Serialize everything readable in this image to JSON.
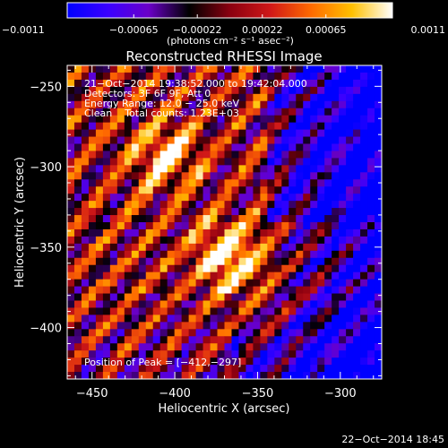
{
  "chart_data": {
    "type": "heatmap",
    "title": "Reconstructed RHESSI Image",
    "xlabel": "Heliocentric X (arcsec)",
    "ylabel": "Heliocentric Y (arcsec)",
    "xlim": [
      -465,
      -275
    ],
    "ylim": [
      -432,
      -237
    ],
    "x_ticks": [
      {
        "value": -450,
        "label": "−450"
      },
      {
        "value": -400,
        "label": "−400"
      },
      {
        "value": -350,
        "label": "−350"
      },
      {
        "value": -300,
        "label": "−300"
      }
    ],
    "y_ticks": [
      {
        "value": -250,
        "label": "−250"
      },
      {
        "value": -300,
        "label": "−300"
      },
      {
        "value": -350,
        "label": "−350"
      },
      {
        "value": -400,
        "label": "−400"
      }
    ],
    "colorbar": {
      "range": [
        -0.0011,
        0.0011
      ],
      "colors": [
        "#0000ff",
        "#3a00ff",
        "#6a00c8",
        "#000000",
        "#8a0010",
        "#d01818",
        "#ff6a00",
        "#ffc000",
        "#ffffff"
      ],
      "ticks": [
        {
          "value": -0.0011,
          "label": "−0.0011"
        },
        {
          "value": -0.00065,
          "label": "−0.00065"
        },
        {
          "value": -0.00022,
          "label": "−0.00022"
        },
        {
          "value": 0.00022,
          "label": "0.00022"
        },
        {
          "value": 0.00065,
          "label": "0.00065"
        },
        {
          "value": 0.0011,
          "label": "0.0011"
        }
      ],
      "unit_label": "(photons cm⁻² s⁻¹ asec⁻²)"
    },
    "annotations": [
      "21−Oct−2014 19:38:52.000 to 19:42:04.000",
      "Detectors: 3F 6F 9F, Att 0",
      "Energy Range: 12.0 − 25.0 keV",
      "Clean    Total counts: 1.23E+03"
    ],
    "peak_label": "Position of Peak = [−412,−297]",
    "peak": [
      -412,
      -297
    ],
    "footer_timestamp": "22−Oct−2014 18:45"
  }
}
